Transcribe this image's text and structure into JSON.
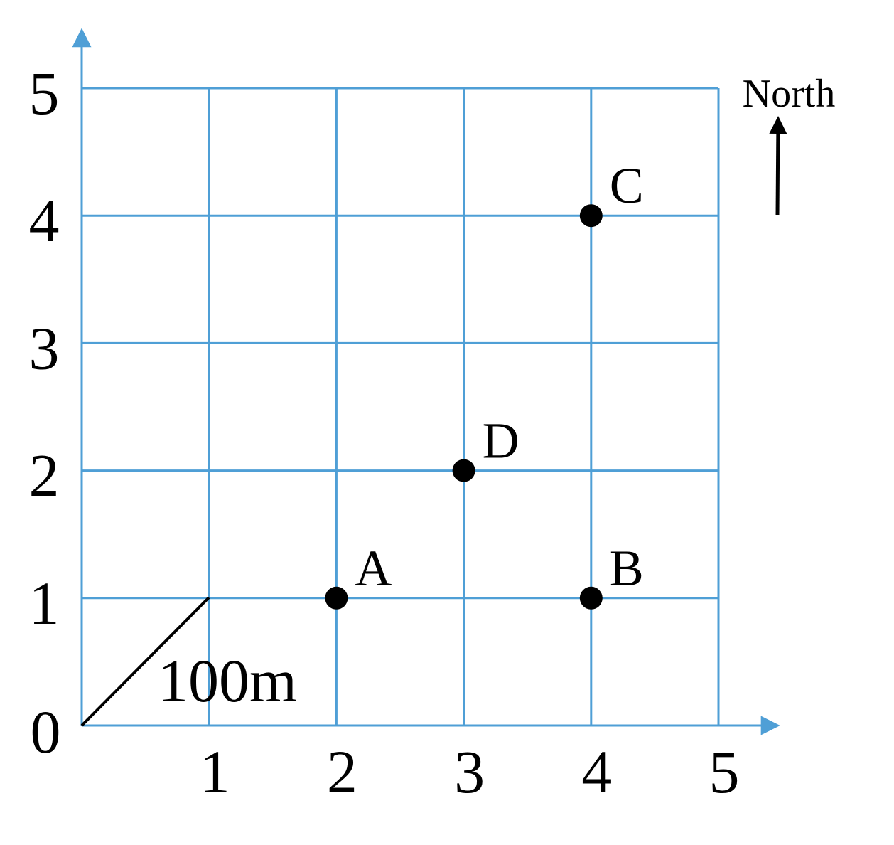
{
  "diagram": {
    "grid": {
      "x_ticks": [
        "1",
        "2",
        "3",
        "4",
        "5"
      ],
      "y_ticks": [
        "1",
        "2",
        "3",
        "4",
        "5"
      ],
      "origin_label": "0",
      "color": "#4f9fd6"
    },
    "scale": {
      "label": "100m"
    },
    "north": {
      "label": "North"
    },
    "points": [
      {
        "label": "A",
        "x": 2,
        "y": 1
      },
      {
        "label": "B",
        "x": 4,
        "y": 1
      },
      {
        "label": "C",
        "x": 4,
        "y": 4
      },
      {
        "label": "D",
        "x": 3,
        "y": 2
      }
    ]
  }
}
